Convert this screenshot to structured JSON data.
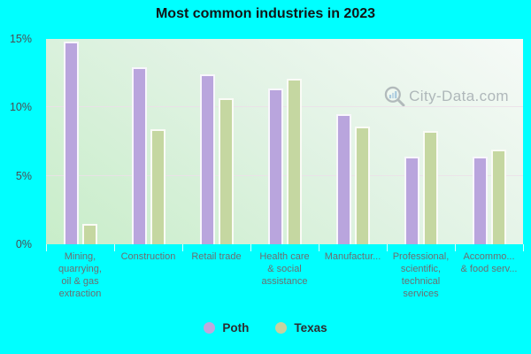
{
  "title": "Most common industries in 2023",
  "watermark": {
    "text": "City-Data.com"
  },
  "colors": {
    "background": "#00ffff",
    "poth_bar": "#b9a5dd",
    "texas_bar": "#c5d7a1",
    "bar_border": "rgba(255,255,255,0.9)",
    "gridline": "#ecdfe9",
    "x_label": "#6d6d70",
    "y_label": "#4c4c52"
  },
  "legend": {
    "items": [
      {
        "label": "Poth",
        "color": "#bda8dd"
      },
      {
        "label": "Texas",
        "color": "#c6d2a0"
      }
    ]
  },
  "chart_data": {
    "type": "bar",
    "title": "Most common industries in 2023",
    "categories": [
      "Mining, quarrying, oil & gas extraction",
      "Construction",
      "Retail trade",
      "Health care & social assistance",
      "Manufactur...",
      "Professional, scientific, technical services",
      "Accommo... & food serv..."
    ],
    "categories_display": [
      [
        "Mining,",
        "quarrying,",
        "oil & gas",
        "extraction"
      ],
      [
        "Construction"
      ],
      [
        "Retail trade"
      ],
      [
        "Health care",
        "& social",
        "assistance"
      ],
      [
        "Manufactur..."
      ],
      [
        "Professional,",
        "scientific,",
        "technical",
        "services"
      ],
      [
        "Accommo...",
        "& food serv..."
      ]
    ],
    "series": [
      {
        "name": "Poth",
        "color": "#b9a5dd",
        "values": [
          14.8,
          12.9,
          12.4,
          11.4,
          9.5,
          6.4,
          6.4
        ]
      },
      {
        "name": "Texas",
        "color": "#c5d7a1",
        "values": [
          1.5,
          8.4,
          10.7,
          12.1,
          8.6,
          8.3,
          6.9
        ]
      }
    ],
    "xlabel": "",
    "ylabel": "",
    "ylim": [
      0,
      15
    ],
    "yticks": [
      {
        "value": 0,
        "label": "0%"
      },
      {
        "value": 5,
        "label": "5%"
      },
      {
        "value": 10,
        "label": "10%"
      },
      {
        "value": 15,
        "label": "15%"
      }
    ],
    "gridlines_at": [
      5,
      10
    ],
    "grid": true,
    "legend_position": "bottom-center"
  }
}
